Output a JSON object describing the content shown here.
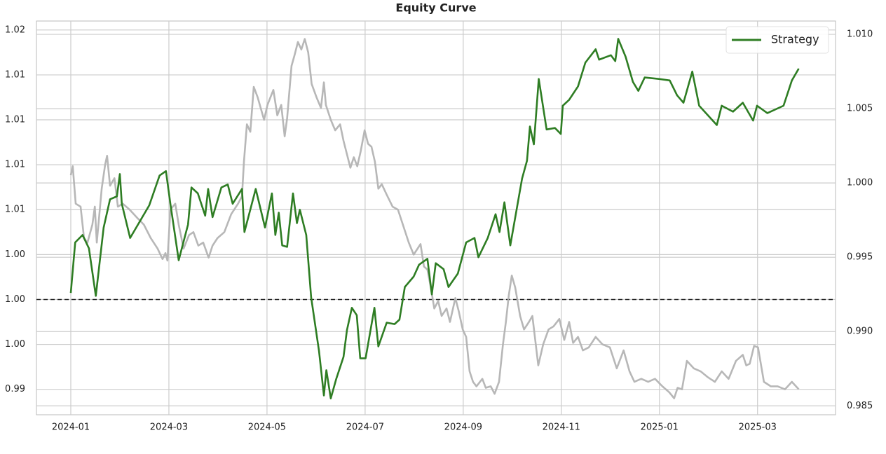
{
  "chart_data": {
    "type": "line",
    "title": "Equity Curve",
    "xlim": [
      -0.7,
      15.59
    ],
    "xticks": [
      {
        "value": 0,
        "label": "2024-01"
      },
      {
        "value": 2,
        "label": "2024-03"
      },
      {
        "value": 4,
        "label": "2024-05"
      },
      {
        "value": 6,
        "label": "2024-07"
      },
      {
        "value": 8,
        "label": "2024-09"
      },
      {
        "value": 10,
        "label": "2024-11"
      },
      {
        "value": 12,
        "label": "2025-01"
      },
      {
        "value": 14,
        "label": "2025-03"
      }
    ],
    "ylim": [
      0.9923,
      1.0186
    ],
    "yticks": [
      {
        "value": 0.994,
        "label": "0.99"
      },
      {
        "value": 0.997,
        "label": "1.00"
      },
      {
        "value": 1.0,
        "label": "1.00"
      },
      {
        "value": 1.003,
        "label": "1.00"
      },
      {
        "value": 1.006,
        "label": "1.01"
      },
      {
        "value": 1.009,
        "label": "1.01"
      },
      {
        "value": 1.012,
        "label": "1.01"
      },
      {
        "value": 1.015,
        "label": "1.01"
      },
      {
        "value": 1.018,
        "label": "1.02"
      }
    ],
    "y2lim": [
      0.9844,
      1.0109
    ],
    "y2ticks": [
      0.985,
      {
        "value": 0.99,
        "label": "0.990"
      },
      0.995,
      {
        "value": 1.0,
        "label": "1.000"
      },
      1.005,
      {
        "value": 1.01,
        "label": "1.010"
      }
    ],
    "grid": true,
    "reference_line": 1.0,
    "legend": "upper right",
    "series": [
      {
        "color": "#b3b3b3",
        "x": [
          0.0,
          0.04,
          0.1,
          0.2,
          0.27,
          0.34,
          0.44,
          0.49,
          0.53,
          0.63,
          0.7,
          0.74,
          0.8,
          0.89,
          0.96,
          1.06,
          1.2,
          1.34,
          1.49,
          1.63,
          1.77,
          1.87,
          1.93,
          1.97,
          2.03,
          2.13,
          2.2,
          2.3,
          2.41,
          2.5,
          2.6,
          2.7,
          2.81,
          2.89,
          2.99,
          3.13,
          3.27,
          3.41,
          3.49,
          3.53,
          3.59,
          3.66,
          3.73,
          3.81,
          3.94,
          4.01,
          4.13,
          4.21,
          4.29,
          4.36,
          4.41,
          4.5,
          4.56,
          4.63,
          4.7,
          4.77,
          4.84,
          4.91,
          5.01,
          5.1,
          5.16,
          5.2,
          5.3,
          5.39,
          5.49,
          5.56,
          5.63,
          5.7,
          5.77,
          5.84,
          5.91,
          5.99,
          6.06,
          6.13,
          6.2,
          6.27,
          6.34,
          6.44,
          6.56,
          6.67,
          6.77,
          6.89,
          6.99,
          7.13,
          7.2,
          7.27,
          7.34,
          7.41,
          7.49,
          7.56,
          7.66,
          7.73,
          7.84,
          7.91,
          7.99,
          8.06,
          8.13,
          8.2,
          8.27,
          8.39,
          8.46,
          8.56,
          8.64,
          8.73,
          8.81,
          8.87,
          8.93,
          8.99,
          9.06,
          9.16,
          9.24,
          9.34,
          9.41,
          9.53,
          9.63,
          9.74,
          9.84,
          9.96,
          10.06,
          10.16,
          10.24,
          10.34,
          10.44,
          10.56,
          10.7,
          10.84,
          10.99,
          11.13,
          11.27,
          11.39,
          11.49,
          11.63,
          11.77,
          11.91,
          12.06,
          12.2,
          12.3,
          12.37,
          12.46,
          12.56,
          12.7,
          12.84,
          12.99,
          13.13,
          13.27,
          13.41,
          13.56,
          13.7,
          13.77,
          13.84,
          13.93,
          14.01,
          14.13,
          14.27,
          14.41,
          14.56,
          14.7,
          14.84
        ],
        "values": [
          1.0083,
          1.0089,
          1.0064,
          1.0062,
          1.0041,
          1.0038,
          1.005,
          1.0062,
          1.0038,
          1.0074,
          1.009,
          1.0096,
          1.0076,
          1.0081,
          1.0062,
          1.0064,
          1.006,
          1.0055,
          1.005,
          1.0041,
          1.0034,
          1.0027,
          1.0031,
          1.0026,
          1.006,
          1.0064,
          1.005,
          1.0034,
          1.0043,
          1.0045,
          1.0036,
          1.0038,
          1.0028,
          1.0036,
          1.0041,
          1.0045,
          1.0057,
          1.0064,
          1.0069,
          1.0092,
          1.0117,
          1.0112,
          1.0142,
          1.0135,
          1.012,
          1.013,
          1.014,
          1.0123,
          1.013,
          1.0109,
          1.0121,
          1.0156,
          1.0163,
          1.0172,
          1.0167,
          1.0174,
          1.0165,
          1.0144,
          1.0135,
          1.0128,
          1.0145,
          1.013,
          1.012,
          1.0113,
          1.0117,
          1.0106,
          1.0097,
          1.0088,
          1.0095,
          1.0089,
          1.0099,
          1.0113,
          1.0104,
          1.0102,
          1.0092,
          1.0074,
          1.0077,
          1.007,
          1.0062,
          1.006,
          1.005,
          1.0038,
          1.003,
          1.0037,
          1.0022,
          1.002,
          1.0008,
          0.9994,
          0.9999,
          0.9989,
          0.9994,
          0.9985,
          1.0001,
          0.9992,
          0.998,
          0.9975,
          0.9952,
          0.9945,
          0.9942,
          0.9947,
          0.9941,
          0.9942,
          0.9937,
          0.9945,
          0.997,
          0.9985,
          1.0003,
          1.0016,
          1.0008,
          0.9989,
          0.998,
          0.9985,
          0.9989,
          0.9956,
          0.997,
          0.998,
          0.9982,
          0.9987,
          0.9973,
          0.9985,
          0.9971,
          0.9975,
          0.9966,
          0.9968,
          0.9975,
          0.997,
          0.9968,
          0.9954,
          0.9966,
          0.9952,
          0.9945,
          0.9947,
          0.9945,
          0.9947,
          0.9942,
          0.9938,
          0.9934,
          0.9941,
          0.994,
          0.9959,
          0.9954,
          0.9952,
          0.9948,
          0.9945,
          0.9952,
          0.9947,
          0.9959,
          0.9963,
          0.9956,
          0.9957,
          0.9969,
          0.9968,
          0.9945,
          0.9942,
          0.9942,
          0.994,
          0.9945,
          0.994
        ]
      },
      {
        "name": "Strategy",
        "color": "#2e7d23",
        "axis": "y2",
        "x": [
          0.0,
          0.09,
          0.24,
          0.37,
          0.51,
          0.67,
          0.8,
          0.94,
          1.0,
          1.04,
          1.21,
          1.6,
          1.81,
          1.94,
          2.03,
          2.2,
          2.39,
          2.46,
          2.59,
          2.74,
          2.8,
          2.89,
          3.07,
          3.2,
          3.3,
          3.49,
          3.54,
          3.77,
          3.96,
          4.1,
          4.17,
          4.24,
          4.31,
          4.41,
          4.53,
          4.61,
          4.67,
          4.8,
          4.9,
          5.06,
          5.16,
          5.21,
          5.3,
          5.41,
          5.56,
          5.63,
          5.73,
          5.83,
          5.9,
          6.01,
          6.19,
          6.27,
          6.44,
          6.6,
          6.7,
          6.81,
          6.99,
          7.1,
          7.27,
          7.36,
          7.44,
          7.6,
          7.7,
          7.89,
          8.06,
          8.23,
          8.31,
          8.5,
          8.66,
          8.74,
          8.84,
          8.96,
          9.2,
          9.3,
          9.36,
          9.44,
          9.54,
          9.7,
          9.87,
          9.99,
          10.03,
          10.16,
          10.34,
          10.49,
          10.7,
          10.77,
          11.01,
          11.1,
          11.16,
          11.31,
          11.46,
          11.57,
          11.7,
          11.99,
          12.21,
          12.36,
          12.49,
          12.67,
          12.81,
          13.17,
          13.27,
          13.5,
          13.7,
          13.91,
          13.99,
          14.2,
          14.53,
          14.7,
          14.84
        ],
        "values": [
          0.9926,
          0.996,
          0.9965,
          0.9956,
          0.9924,
          0.997,
          0.9989,
          0.9991,
          1.0006,
          0.9986,
          0.9963,
          0.9985,
          1.0005,
          1.0008,
          0.9986,
          0.9948,
          0.9972,
          0.9997,
          0.9993,
          0.9978,
          0.9996,
          0.9977,
          0.9997,
          0.9999,
          0.9986,
          0.9996,
          0.9967,
          0.9996,
          0.997,
          0.9993,
          0.9965,
          0.998,
          0.9958,
          0.9957,
          0.9993,
          0.9973,
          0.9982,
          0.9965,
          0.9923,
          0.9887,
          0.9857,
          0.9874,
          0.9855,
          0.9868,
          0.9883,
          0.9901,
          0.9916,
          0.9911,
          0.9882,
          0.9882,
          0.9916,
          0.989,
          0.9906,
          0.9905,
          0.9908,
          0.993,
          0.9937,
          0.9945,
          0.9949,
          0.9925,
          0.9946,
          0.9942,
          0.993,
          0.9939,
          0.996,
          0.9963,
          0.995,
          0.9963,
          0.9979,
          0.9967,
          0.9987,
          0.9958,
          1.0003,
          1.0015,
          1.0038,
          1.0026,
          1.007,
          1.0036,
          1.0037,
          1.0033,
          1.0052,
          1.0056,
          1.0065,
          1.0081,
          1.009,
          1.0083,
          1.0086,
          1.0082,
          1.0097,
          1.0085,
          1.0068,
          1.0062,
          1.0071,
          1.007,
          1.0069,
          1.0059,
          1.0054,
          1.0075,
          1.0052,
          1.0039,
          1.0052,
          1.0048,
          1.0054,
          1.0042,
          1.0052,
          1.0047,
          1.0052,
          1.0069,
          1.0077
        ]
      }
    ]
  }
}
